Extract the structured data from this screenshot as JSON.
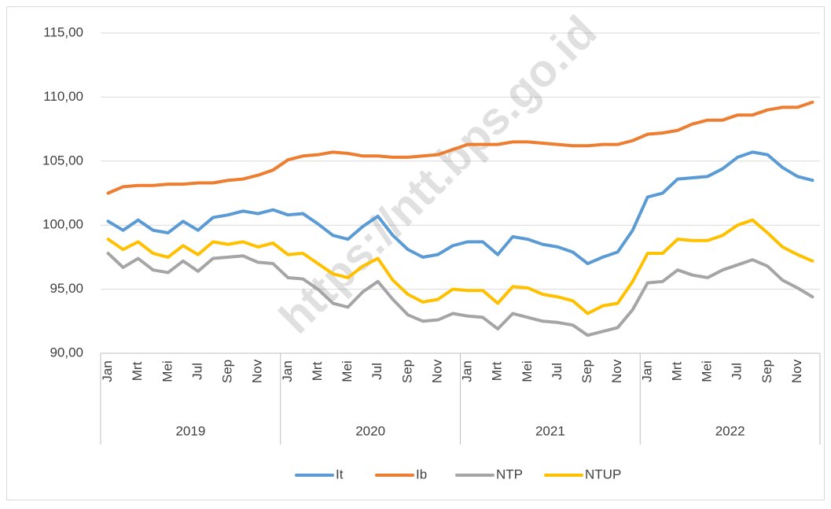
{
  "chart_data": {
    "type": "line",
    "watermark": "https://ntt.bps.go.id",
    "categories": [
      "Jan",
      null,
      "Mrt",
      null,
      "Mei",
      null,
      "Jul",
      null,
      "Sep",
      null,
      "Nov",
      null,
      "Jan",
      null,
      "Mrt",
      null,
      "Mei",
      null,
      "Jul",
      null,
      "Sep",
      null,
      "Nov",
      null,
      "Jan",
      null,
      "Mrt",
      null,
      "Mei",
      null,
      "Jul",
      null,
      "Sep",
      null,
      "Nov",
      null,
      "Jan",
      null,
      "Mrt",
      null,
      "Mei",
      null,
      "Jul",
      null,
      "Sep",
      null,
      "Nov",
      null
    ],
    "years": [
      "2019",
      "2020",
      "2021",
      "2022"
    ],
    "ylim": [
      90,
      115
    ],
    "yticks": [
      {
        "value": 90,
        "label": "90,00"
      },
      {
        "value": 95,
        "label": "95,00"
      },
      {
        "value": 100,
        "label": "100,00"
      },
      {
        "value": 105,
        "label": "105,00"
      },
      {
        "value": 110,
        "label": "110,00"
      },
      {
        "value": 115,
        "label": "115,00"
      }
    ],
    "grid": true,
    "legend": "bottom",
    "series": [
      {
        "name": "It",
        "color": "#5b9bd5",
        "values": [
          100.3,
          99.6,
          100.4,
          99.6,
          99.4,
          100.3,
          99.6,
          100.6,
          100.8,
          101.1,
          100.9,
          101.2,
          100.8,
          100.9,
          100.1,
          99.2,
          98.9,
          99.9,
          100.7,
          99.2,
          98.1,
          97.5,
          97.7,
          98.4,
          98.7,
          98.7,
          97.7,
          99.1,
          98.9,
          98.5,
          98.3,
          97.9,
          97.0,
          97.5,
          97.9,
          99.6,
          102.2,
          102.5,
          103.6,
          103.7,
          103.8,
          104.4,
          105.3,
          105.7,
          105.5,
          104.5,
          103.8,
          103.5
        ]
      },
      {
        "name": "Ib",
        "color": "#ed7d31",
        "values": [
          102.5,
          103.0,
          103.1,
          103.1,
          103.2,
          103.2,
          103.3,
          103.3,
          103.5,
          103.6,
          103.9,
          104.3,
          105.1,
          105.4,
          105.5,
          105.7,
          105.6,
          105.4,
          105.4,
          105.3,
          105.3,
          105.4,
          105.5,
          105.9,
          106.3,
          106.3,
          106.3,
          106.5,
          106.5,
          106.4,
          106.3,
          106.2,
          106.2,
          106.3,
          106.3,
          106.6,
          107.1,
          107.2,
          107.4,
          107.9,
          108.2,
          108.2,
          108.6,
          108.6,
          109.0,
          109.2,
          109.2,
          109.6
        ]
      },
      {
        "name": "NTP",
        "color": "#a5a5a5",
        "values": [
          97.8,
          96.7,
          97.4,
          96.5,
          96.3,
          97.2,
          96.4,
          97.4,
          97.5,
          97.6,
          97.1,
          97.0,
          95.9,
          95.8,
          95.0,
          93.9,
          93.6,
          94.8,
          95.6,
          94.2,
          93.0,
          92.5,
          92.6,
          93.1,
          92.9,
          92.8,
          91.9,
          93.1,
          92.8,
          92.5,
          92.4,
          92.2,
          91.4,
          91.7,
          92.0,
          93.4,
          95.5,
          95.6,
          96.5,
          96.1,
          95.9,
          96.5,
          96.9,
          97.3,
          96.8,
          95.7,
          95.1,
          94.4
        ]
      },
      {
        "name": "NTUP",
        "color": "#ffc000",
        "values": [
          98.9,
          98.1,
          98.7,
          97.8,
          97.5,
          98.4,
          97.7,
          98.7,
          98.5,
          98.7,
          98.3,
          98.6,
          97.7,
          97.8,
          97.0,
          96.2,
          95.9,
          96.8,
          97.4,
          95.7,
          94.6,
          94.0,
          94.2,
          95.0,
          94.9,
          94.9,
          93.9,
          95.2,
          95.1,
          94.6,
          94.4,
          94.1,
          93.1,
          93.7,
          93.9,
          95.6,
          97.8,
          97.8,
          98.9,
          98.8,
          98.8,
          99.2,
          100.0,
          100.4,
          99.4,
          98.3,
          97.7,
          97.2
        ]
      }
    ]
  }
}
